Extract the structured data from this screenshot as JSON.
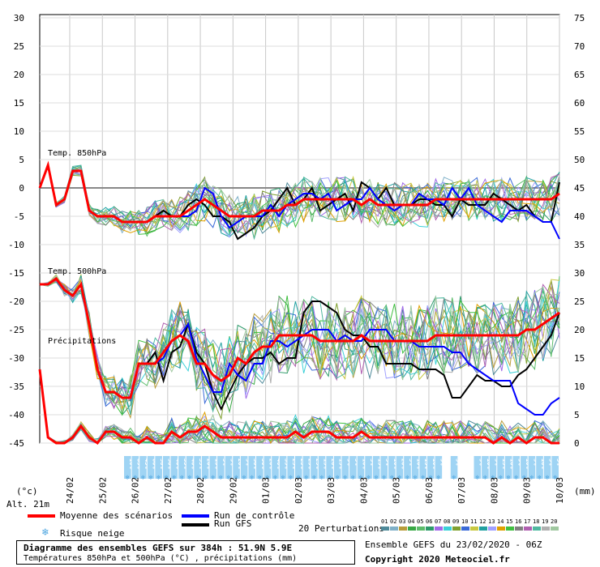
{
  "chart_data": {
    "type": "line",
    "left_axis": {
      "ticks": [
        30,
        25,
        20,
        15,
        10,
        5,
        0,
        -5,
        -10,
        -15,
        -20,
        -25,
        -30,
        -35,
        -40,
        -45
      ],
      "unit": "(°c)"
    },
    "right_axis": {
      "ticks": [
        75,
        70,
        65,
        60,
        55,
        50,
        45,
        40,
        35,
        30,
        25,
        20,
        15,
        10,
        5,
        0
      ],
      "unit": "(mm)"
    },
    "x_labels": [
      "24/02",
      "25/02",
      "26/02",
      "27/02",
      "28/02",
      "29/02",
      "01/03",
      "02/03",
      "03/03",
      "04/03",
      "05/03",
      "06/03",
      "07/03",
      "08/03",
      "09/03",
      "10/03"
    ],
    "altitude": "Alt. 21m",
    "panel_labels": {
      "t850": "Temp. 850hPa",
      "t500": "Temp. 500hPa",
      "precip": "Précipitations"
    },
    "t850_mean": [
      0,
      4,
      -3,
      -2,
      3,
      3,
      -4,
      -5,
      -5,
      -5,
      -6,
      -6,
      -6,
      -6,
      -5,
      -5,
      -5,
      -5,
      -4,
      -3,
      -2,
      -3,
      -4,
      -5,
      -5,
      -5,
      -5,
      -4,
      -4,
      -4,
      -3,
      -3,
      -2,
      -2,
      -2,
      -2,
      -2,
      -2,
      -2,
      -3,
      -2,
      -3,
      -3,
      -3,
      -3,
      -3,
      -3,
      -3,
      -2,
      -2,
      -2,
      -2,
      -2,
      -2,
      -2,
      -2,
      -2,
      -2,
      -2,
      -2,
      -2,
      -2,
      -2,
      -1
    ],
    "t850_control": [
      0,
      4,
      -3,
      -2,
      3,
      3,
      -4,
      -5,
      -5,
      -5,
      -6,
      -6,
      -6,
      -6,
      -5,
      -5,
      -5,
      -5,
      -5,
      -4,
      0,
      -1,
      -5,
      -7,
      -6,
      -5,
      -5,
      -5,
      -3,
      -5,
      -3,
      -2,
      -1,
      -1,
      -2,
      -1,
      -4,
      -3,
      -2,
      -2,
      0,
      -2,
      -3,
      -4,
      -3,
      -3,
      -1,
      -2,
      -2,
      -3,
      0,
      -2,
      0,
      -3,
      -4,
      -5,
      -6,
      -4,
      -4,
      -4,
      -5,
      -6,
      -6,
      -9
    ],
    "t850_gfs": [
      0,
      4,
      -3,
      -2,
      3,
      3,
      -4,
      -5,
      -5,
      -5,
      -6,
      -6,
      -6,
      -6,
      -5,
      -4,
      -5,
      -5,
      -3,
      -2,
      -3,
      -5,
      -5,
      -6,
      -9,
      -8,
      -7,
      -5,
      -4,
      -2,
      0,
      -3,
      -2,
      0,
      -4,
      -3,
      -2,
      -1,
      -4,
      1,
      0,
      -2,
      0,
      -3,
      -3,
      -3,
      -2,
      -2,
      -3,
      -3,
      -5,
      -2,
      -3,
      -3,
      -3,
      -1,
      -2,
      -3,
      -4,
      -3,
      -5,
      -6,
      -6,
      1
    ],
    "t500_mean": [
      -17,
      -17,
      -16,
      -18,
      -19,
      -17,
      -24,
      -32,
      -36,
      -36,
      -37,
      -37,
      -31,
      -31,
      -31,
      -29,
      -27,
      -26,
      -27,
      -31,
      -31,
      -33,
      -34,
      -33,
      -30,
      -31,
      -29,
      -28,
      -28,
      -26,
      -26,
      -26,
      -26,
      -26,
      -27,
      -27,
      -27,
      -27,
      -27,
      -26,
      -27,
      -27,
      -27,
      -27,
      -27,
      -27,
      -27,
      -27,
      -26,
      -26,
      -26,
      -26,
      -26,
      -26,
      -26,
      -26,
      -26,
      -26,
      -26,
      -25,
      -25,
      -24,
      -23,
      -22
    ],
    "t500_control": [
      -17,
      -17,
      -16,
      -18,
      -19,
      -17,
      -24,
      -32,
      -36,
      -36,
      -37,
      -37,
      -31,
      -31,
      -31,
      -30,
      -27,
      -26,
      -24,
      -30,
      -33,
      -36,
      -36,
      -31,
      -33,
      -34,
      -31,
      -31,
      -27,
      -27,
      -28,
      -27,
      -26,
      -25,
      -25,
      -25,
      -27,
      -26,
      -27,
      -27,
      -25,
      -25,
      -25,
      -27,
      -27,
      -27,
      -28,
      -28,
      -28,
      -28,
      -29,
      -29,
      -31,
      -32,
      -33,
      -34,
      -34,
      -34,
      -38,
      -39,
      -40,
      -40,
      -38,
      -37
    ],
    "t500_gfs": [
      -17,
      -17,
      -16,
      -18,
      -19,
      -17,
      -24,
      -32,
      -36,
      -36,
      -37,
      -37,
      -31,
      -31,
      -29,
      -34,
      -29,
      -28,
      -24,
      -29,
      -31,
      -36,
      -39,
      -36,
      -33,
      -31,
      -30,
      -30,
      -29,
      -31,
      -30,
      -30,
      -22,
      -20,
      -20,
      -21,
      -22,
      -25,
      -26,
      -26,
      -28,
      -28,
      -31,
      -31,
      -31,
      -31,
      -32,
      -32,
      -32,
      -33,
      -37,
      -37,
      -35,
      -33,
      -34,
      -34,
      -35,
      -35,
      -33,
      -32,
      -30,
      -28,
      -26,
      -22
    ],
    "precip_mean": [
      13,
      1,
      0,
      0,
      1,
      3,
      1,
      0,
      2,
      2,
      1,
      1,
      0,
      1,
      0,
      0,
      2,
      1,
      2,
      2,
      3,
      2,
      1,
      1,
      1,
      1,
      1,
      1,
      1,
      1,
      1,
      2,
      1,
      2,
      2,
      2,
      1,
      1,
      1,
      2,
      1,
      1,
      1,
      1,
      1,
      1,
      1,
      1,
      1,
      1,
      1,
      1,
      1,
      1,
      1,
      0,
      1,
      0,
      1,
      0,
      1,
      1,
      0,
      0
    ],
    "snow_risk": [
      "10%",
      "85%",
      "45%",
      "60%",
      "50%",
      "50%",
      "40%",
      "35%",
      "40%",
      "35%",
      "20%",
      "15%",
      "5%",
      "5%",
      "20%",
      "5%",
      "30%",
      "30%",
      "20%",
      "40%",
      "35%",
      "25%",
      "25%",
      "25%",
      "25%",
      "15%",
      "20%",
      "15%",
      "5%",
      "5%",
      "10%",
      "5%",
      "15%",
      "5%",
      "10%",
      "20%",
      "5%",
      "10%",
      "15%",
      "10%",
      "5%",
      "",
      "5%",
      "",
      "",
      "5%",
      "10%",
      "5%",
      "15%",
      "10%",
      "5%",
      "10%",
      "5%",
      "10%",
      "5%",
      "5%"
    ],
    "legend": {
      "mean": "Moyenne des scénarios",
      "control": "Run de contrôle",
      "gfs": "Run GFS",
      "snow": "Risque neige",
      "perturbations": "20 Perturbations",
      "perturbation_ids": [
        "01",
        "02",
        "03",
        "04",
        "05",
        "06",
        "07",
        "08",
        "09",
        "10",
        "11",
        "12",
        "13",
        "14",
        "15",
        "16",
        "17",
        "18",
        "19",
        "20"
      ]
    },
    "colors": {
      "mean": "#ff0000",
      "control": "#0000ff",
      "gfs": "#000000",
      "perturbations": [
        "#4f8a9a",
        "#7fb0c8",
        "#b89c3a",
        "#38a844",
        "#5cbc6a",
        "#2c9a6a",
        "#a06ae8",
        "#3ad0d8",
        "#80a030",
        "#3a6ad8",
        "#c8c840",
        "#20a0a0",
        "#a0a0ff",
        "#e0a000",
        "#40c040",
        "#808080",
        "#b060b0",
        "#50b8a0",
        "#b0b0b0",
        "#a0c8a0"
      ]
    }
  },
  "footer": {
    "title": "Diagramme des ensembles GEFS sur 384h : 51.9N 5.9E",
    "subtitle": "Températures 850hPa et 500hPa (°C) , précipitations (mm)",
    "run": "Ensemble GEFS du 23/02/2020 - 06Z",
    "copyright": "Copyright 2020 Meteociel.fr"
  }
}
